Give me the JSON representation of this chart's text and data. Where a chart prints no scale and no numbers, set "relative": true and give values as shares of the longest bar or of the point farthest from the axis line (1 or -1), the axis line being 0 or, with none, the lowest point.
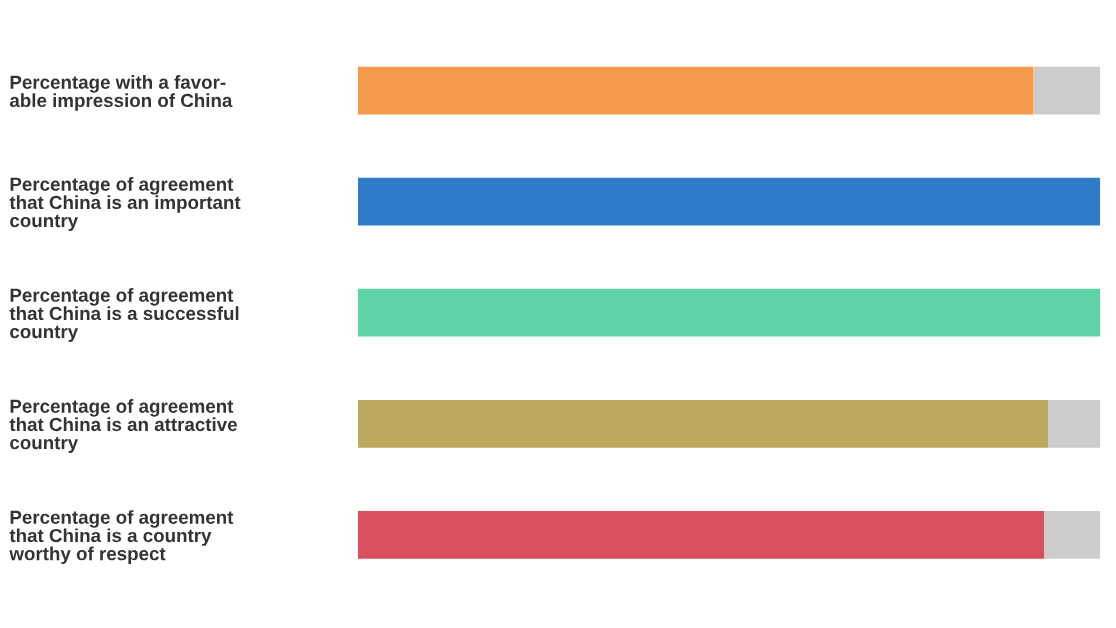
{
  "chart_data": {
    "type": "bar",
    "orientation": "horizontal",
    "stacked": true,
    "relative": true,
    "categories": [
      "Percentage with a favor-\nable impression of China",
      "Percentage of agreement\nthat China is an important\ncountry",
      "Percentage of agreement\nthat China is a successful\ncountry",
      "Percentage of agreement\nthat China is an attractive\ncountry",
      "Percentage of agreement\nthat China is a country\nworthy of respect"
    ],
    "series": [
      {
        "colors": [
          "#f5994a",
          "#2f7bc8",
          "#5dd3a6",
          "#bba95e",
          "#d9505f"
        ],
        "values": [
          0.91,
          1.0,
          1.0,
          0.93,
          0.925
        ]
      },
      {
        "color": "#cccccc",
        "values": [
          0.09,
          0.0,
          0.0,
          0.07,
          0.075
        ]
      }
    ]
  }
}
